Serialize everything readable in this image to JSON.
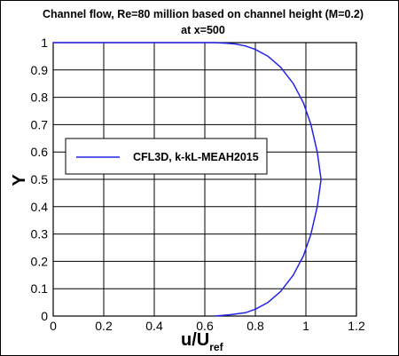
{
  "chart_data": {
    "type": "line",
    "title": "Channel flow, Re=80 million based on channel height (M=0.2)",
    "subtitle": "at x=500",
    "xlabel": {
      "main": "u/U",
      "subscript": "ref"
    },
    "ylabel": "Y",
    "xlim": [
      0,
      1.2
    ],
    "ylim": [
      0,
      1
    ],
    "xticks": [
      "0",
      "0.2",
      "0.4",
      "0.6",
      "0.8",
      "1",
      "1.2"
    ],
    "yticks": [
      "0",
      "0.1",
      "0.2",
      "0.3",
      "0.4",
      "0.5",
      "0.6",
      "0.7",
      "0.8",
      "0.9",
      "1"
    ],
    "grid": true,
    "legend_position": "middle-left",
    "series": [
      {
        "name": "CFL3D, k-kL-MEAH2015",
        "color": "#2323e6",
        "x": [
          0.64,
          0.7,
          0.76,
          0.8,
          0.85,
          0.9,
          0.95,
          0.99,
          1.02,
          1.045,
          1.06,
          1.045,
          1.02,
          0.99,
          0.95,
          0.9,
          0.85,
          0.8,
          0.76,
          0.72,
          0.68,
          0.64,
          0.55,
          0.4,
          0.2,
          0.0
        ],
        "y": [
          0.0,
          0.005,
          0.012,
          0.025,
          0.05,
          0.09,
          0.15,
          0.22,
          0.3,
          0.4,
          0.5,
          0.6,
          0.7,
          0.78,
          0.85,
          0.91,
          0.95,
          0.975,
          0.988,
          0.995,
          0.998,
          1.0,
          1.0,
          1.0,
          1.0,
          1.0
        ]
      }
    ]
  }
}
